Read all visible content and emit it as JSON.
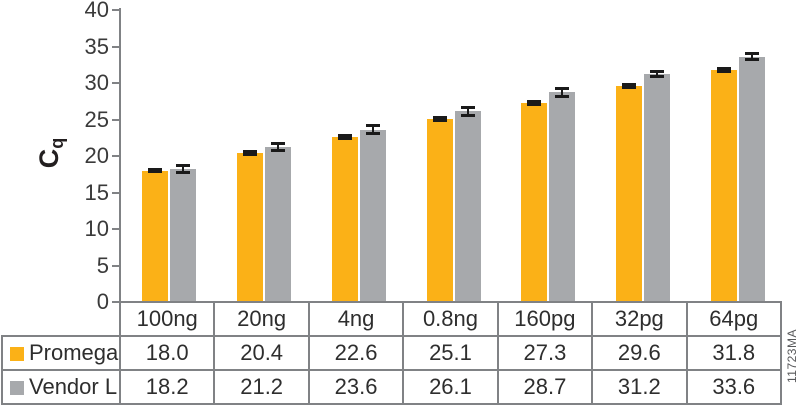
{
  "watermark": "11723MA",
  "colors": {
    "promega_orange": "#FBB117",
    "vendor_gray": "#A7A9AC",
    "axis_gray": "#808285",
    "error_black": "#1a1a1a",
    "text": "#2e2e2e"
  },
  "chart_data": {
    "type": "bar",
    "title": "",
    "ylabel_main": "C",
    "ylabel_sub": "q",
    "xlabel": "",
    "ylim": [
      0,
      40
    ],
    "y_ticks": [
      0,
      5,
      10,
      15,
      20,
      25,
      30,
      35,
      40
    ],
    "grid": false,
    "legend_position": "table-left-column",
    "categories": [
      "100ng",
      "20ng",
      "4ng",
      "0.8ng",
      "160pg",
      "32pg",
      "64pg"
    ],
    "series": [
      {
        "name": "Promega",
        "color_key": "promega_orange",
        "values": [
          18.0,
          20.4,
          22.6,
          25.1,
          27.3,
          29.6,
          31.8
        ],
        "errors": [
          0.15,
          0.2,
          0.15,
          0.2,
          0.2,
          0.25,
          0.25
        ]
      },
      {
        "name": "Vendor L",
        "color_key": "vendor_gray",
        "values": [
          18.2,
          21.2,
          23.6,
          26.1,
          28.7,
          31.2,
          33.6
        ],
        "errors": [
          0.5,
          0.45,
          0.55,
          0.5,
          0.5,
          0.35,
          0.4
        ]
      }
    ]
  }
}
